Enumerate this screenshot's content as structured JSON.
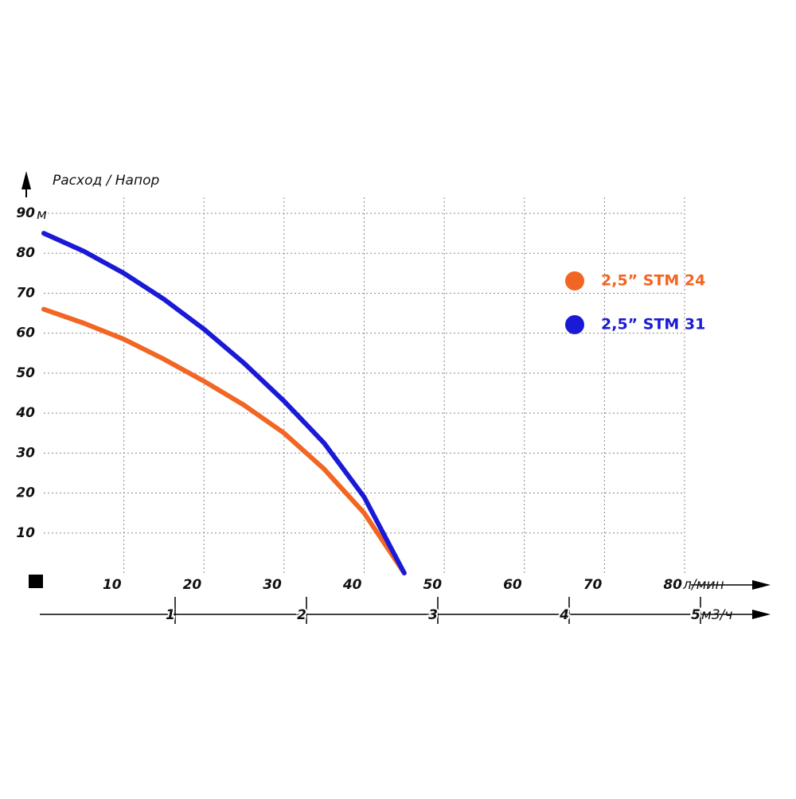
{
  "chart_data": {
    "type": "line",
    "axis_title": "Расход / Напор",
    "y_unit": "м",
    "x_unit": "л/мин",
    "x2_unit": "м3/ч",
    "x": [
      0,
      5,
      10,
      15,
      20,
      25,
      30,
      35,
      40,
      45
    ],
    "series": [
      {
        "name": "2,5” STM 24",
        "color": "#f26522",
        "values": [
          66,
          62.5,
          58.5,
          53.5,
          48,
          42,
          35,
          26,
          15,
          0
        ]
      },
      {
        "name": "2,5” STM 31",
        "color": "#1a1ad6",
        "values": [
          85,
          80.5,
          75,
          68.5,
          61,
          52.5,
          43,
          32.5,
          19,
          0
        ]
      }
    ],
    "xlim": [
      0,
      80
    ],
    "xticks": [
      10,
      20,
      30,
      40,
      50,
      60,
      70,
      80
    ],
    "ylim": [
      0,
      90
    ],
    "yticks": [
      10,
      20,
      30,
      40,
      50,
      60,
      70,
      80,
      90
    ],
    "x2lim": [
      0,
      5
    ],
    "x2ticks": [
      1,
      2,
      3,
      4,
      5
    ],
    "grid": true,
    "legend": "right"
  }
}
